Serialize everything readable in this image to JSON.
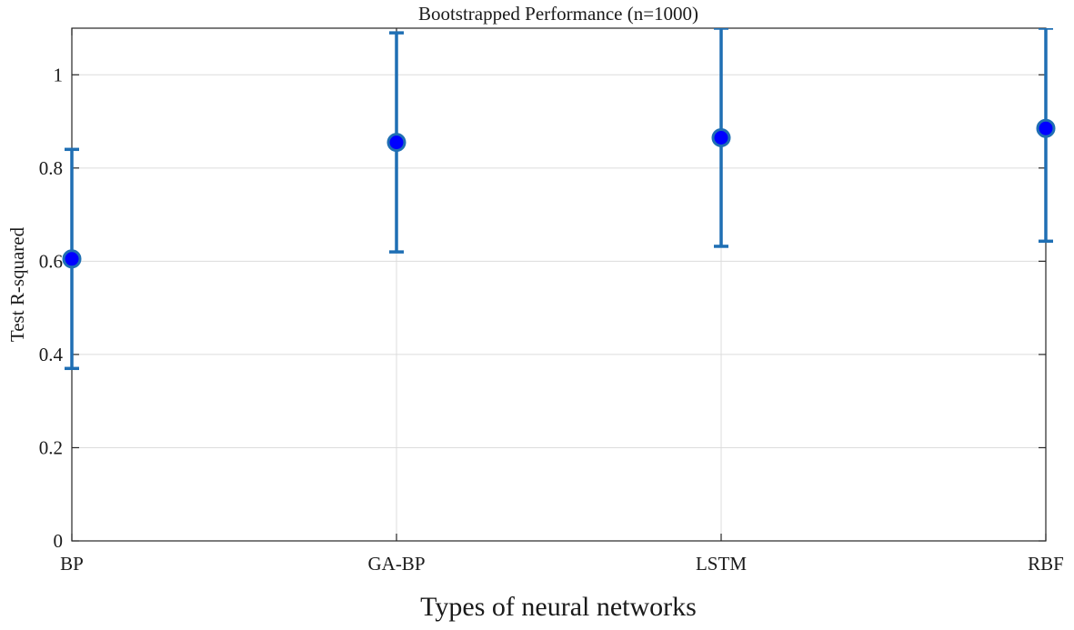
{
  "chart_data": {
    "type": "scatter",
    "title": "Bootstrapped Performance (n=1000)",
    "xlabel": "Types of neural networks",
    "ylabel": "Test R-squared",
    "categories": [
      "BP",
      "GA-BP",
      "LSTM",
      "RBF"
    ],
    "values": [
      0.605,
      0.855,
      0.865,
      0.885
    ],
    "error_low": [
      0.37,
      0.62,
      0.632,
      0.643
    ],
    "error_high": [
      0.84,
      1.09,
      1.1,
      1.1
    ],
    "ylim": [
      0,
      1.1
    ],
    "yticks": [
      0,
      0.2,
      0.4,
      0.6,
      0.8,
      1
    ],
    "ytick_labels": [
      "0",
      "0.2",
      "0.4",
      "0.6",
      "0.8",
      "1"
    ],
    "grid": true,
    "colors": {
      "error_bar": "#1f6fb4",
      "marker_fill": "#0000ff",
      "marker_edge": "#1f6fb4"
    }
  }
}
